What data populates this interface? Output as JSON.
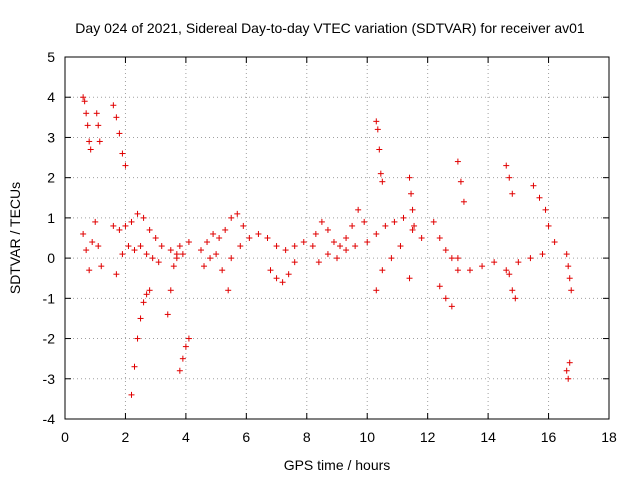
{
  "chart_data": {
    "type": "scatter",
    "title": "Day 024 of 2021, Sidereal Day-to-day VTEC variation (SDTVAR) for receiver av01",
    "xlabel": "GPS time / hours",
    "ylabel": "SDTVAR / TECUs",
    "xlim": [
      0,
      18
    ],
    "ylim": [
      -4,
      5
    ],
    "xticks": [
      "0",
      "2",
      "4",
      "6",
      "8",
      "10",
      "12",
      "14",
      "16",
      "18"
    ],
    "yticks": [
      "5",
      "4",
      "3",
      "2",
      "1",
      "0",
      "-1",
      "-2",
      "-3",
      "-4"
    ],
    "xtick_values": [
      0,
      2,
      4,
      6,
      8,
      10,
      12,
      14,
      16,
      18
    ],
    "ytick_values": [
      5,
      4,
      3,
      2,
      1,
      0,
      -1,
      -2,
      -3,
      -4
    ],
    "grid": true,
    "marker": "plus",
    "marker_color": "#e00000",
    "series": [
      {
        "name": "SDTVAR",
        "segments": [
          {
            "x": [
              0.6,
              0.65,
              0.7,
              0.75,
              0.8,
              0.85
            ],
            "y": [
              4.0,
              3.9,
              3.6,
              3.3,
              2.9,
              2.7
            ]
          },
          {
            "x": [
              0.6,
              0.7,
              0.8,
              0.9,
              1.0,
              1.1,
              1.2
            ],
            "y": [
              0.6,
              0.2,
              -0.3,
              0.4,
              0.9,
              0.3,
              -0.2
            ]
          },
          {
            "x": [
              1.05,
              1.1,
              1.15
            ],
            "y": [
              3.6,
              3.3,
              2.9
            ]
          },
          {
            "x": [
              1.6,
              1.7,
              1.8,
              1.9,
              2.0
            ],
            "y": [
              3.8,
              3.5,
              3.1,
              2.6,
              2.3
            ]
          },
          {
            "x": [
              1.6,
              1.8,
              2.0,
              2.2,
              2.4,
              2.6,
              2.8,
              3.0,
              3.2
            ],
            "y": [
              0.8,
              0.7,
              0.8,
              0.9,
              1.1,
              1.0,
              0.7,
              0.5,
              0.3
            ]
          },
          {
            "x": [
              1.7,
              1.9,
              2.1,
              2.3,
              2.5,
              2.7,
              2.9,
              3.1
            ],
            "y": [
              -0.4,
              0.1,
              0.3,
              0.2,
              0.3,
              0.1,
              0.0,
              -0.1
            ]
          },
          {
            "x": [
              2.2,
              2.3,
              2.4,
              2.5,
              2.6,
              2.7,
              2.8
            ],
            "y": [
              -3.4,
              -2.7,
              -2.0,
              -1.5,
              -1.1,
              -0.9,
              -0.8
            ]
          },
          {
            "x": [
              3.4,
              3.5,
              3.6,
              3.7,
              3.8
            ],
            "y": [
              -1.4,
              -0.8,
              -0.2,
              0.1,
              0.3
            ]
          },
          {
            "x": [
              3.5,
              3.7,
              3.9,
              4.1
            ],
            "y": [
              0.2,
              0.0,
              0.1,
              0.4
            ]
          },
          {
            "x": [
              3.8,
              3.9,
              4.0,
              4.1
            ],
            "y": [
              -2.8,
              -2.5,
              -2.2,
              -2.0
            ]
          },
          {
            "x": [
              4.5,
              4.7,
              4.9,
              5.1,
              5.3,
              5.5,
              5.7,
              5.9
            ],
            "y": [
              0.2,
              0.4,
              0.6,
              0.5,
              0.7,
              1.0,
              1.1,
              0.8
            ]
          },
          {
            "x": [
              4.6,
              4.8,
              5.0,
              5.2,
              5.4
            ],
            "y": [
              -0.2,
              0.0,
              0.1,
              -0.3,
              -0.8
            ]
          },
          {
            "x": [
              5.5,
              5.8,
              6.1,
              6.4,
              6.7,
              7.0,
              7.3,
              7.6,
              7.9,
              8.2
            ],
            "y": [
              0.0,
              0.3,
              0.5,
              0.6,
              0.5,
              0.3,
              0.2,
              0.3,
              0.4,
              0.3
            ]
          },
          {
            "x": [
              6.8,
              7.0,
              7.2,
              7.4,
              7.6
            ],
            "y": [
              -0.3,
              -0.5,
              -0.6,
              -0.4,
              -0.1
            ]
          },
          {
            "x": [
              8.3,
              8.5,
              8.7,
              8.9,
              9.1,
              9.3,
              9.5,
              9.7,
              9.9
            ],
            "y": [
              0.6,
              0.9,
              0.7,
              0.4,
              0.3,
              0.5,
              0.8,
              1.2,
              0.9
            ]
          },
          {
            "x": [
              8.4,
              8.7,
              9.0,
              9.3,
              9.6
            ],
            "y": [
              -0.1,
              0.1,
              0.0,
              0.2,
              0.3
            ]
          },
          {
            "x": [
              10.3,
              10.35,
              10.4,
              10.45,
              10.5
            ],
            "y": [
              3.4,
              3.2,
              2.7,
              2.1,
              1.9
            ]
          },
          {
            "x": [
              10.0,
              10.3,
              10.6,
              10.9,
              11.2,
              11.5,
              11.8
            ],
            "y": [
              0.4,
              0.6,
              0.8,
              0.9,
              1.0,
              0.7,
              0.5
            ]
          },
          {
            "x": [
              10.3,
              10.5,
              10.8,
              11.1,
              11.4
            ],
            "y": [
              -0.8,
              -0.3,
              0.0,
              0.3,
              -0.5
            ]
          },
          {
            "x": [
              11.4,
              11.45,
              11.5,
              11.55
            ],
            "y": [
              2.0,
              1.6,
              1.2,
              0.8
            ]
          },
          {
            "x": [
              12.2,
              12.4,
              12.6,
              12.8,
              13.0
            ],
            "y": [
              0.9,
              0.5,
              0.2,
              0.0,
              -0.3
            ]
          },
          {
            "x": [
              12.4,
              12.6,
              12.8
            ],
            "y": [
              -0.7,
              -1.0,
              -1.2
            ]
          },
          {
            "x": [
              13.0,
              13.1,
              13.2
            ],
            "y": [
              2.4,
              1.9,
              1.4
            ]
          },
          {
            "x": [
              13.0,
              13.4,
              13.8,
              14.2,
              14.6,
              15.0,
              15.4,
              15.8,
              16.2
            ],
            "y": [
              0.0,
              -0.3,
              -0.2,
              -0.1,
              -0.3,
              -0.1,
              0.0,
              0.1,
              0.4
            ]
          },
          {
            "x": [
              14.6,
              14.7,
              14.8
            ],
            "y": [
              2.3,
              2.0,
              1.6
            ]
          },
          {
            "x": [
              14.7,
              14.8,
              14.9
            ],
            "y": [
              -0.4,
              -0.8,
              -1.0
            ]
          },
          {
            "x": [
              15.5,
              15.7,
              15.9,
              16.0
            ],
            "y": [
              1.8,
              1.5,
              1.2,
              0.8
            ]
          },
          {
            "x": [
              16.6,
              16.65,
              16.7
            ],
            "y": [
              -2.8,
              -3.0,
              -2.6
            ]
          },
          {
            "x": [
              16.6,
              16.65,
              16.7,
              16.75
            ],
            "y": [
              0.1,
              -0.2,
              -0.5,
              -0.8
            ]
          }
        ]
      }
    ]
  }
}
